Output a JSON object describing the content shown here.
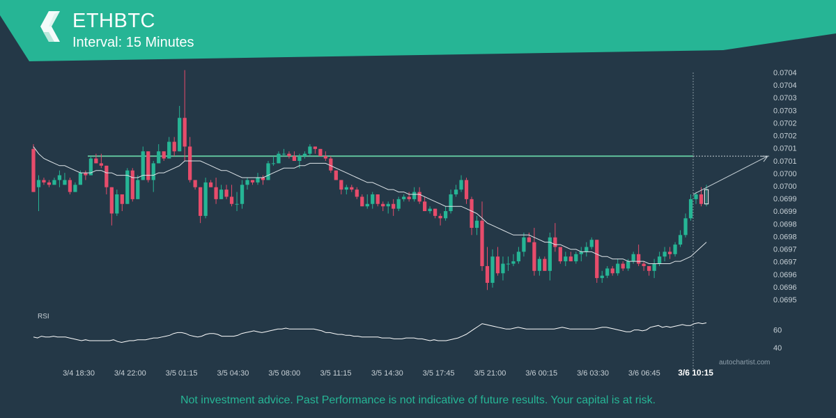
{
  "header": {
    "symbol": "ETHBTC",
    "interval": "Interval: 15 Minutes",
    "logo_icon": "autochartist-logo-icon"
  },
  "footer": {
    "disclaimer": "Not investment advice. Past Performance is not indicative of future results. Your capital is at risk.",
    "watermark": "autochartist.com"
  },
  "colors": {
    "background": "#243847",
    "brand": "#26b595",
    "up": "#26b595",
    "down": "#e74c6b",
    "level_line": "#5fbf9a",
    "ma": "#e0e6ea",
    "rsi": "#ffffff"
  },
  "chart_data": {
    "type": "candlestick",
    "y_axis": {
      "position": "right",
      "ticks": [
        "0.0704",
        "0.0704",
        "0.0703",
        "0.0703",
        "0.0702",
        "0.0702",
        "0.0701",
        "0.0701",
        "0.0700",
        "0.0700",
        "0.0699",
        "0.0699",
        "0.0698",
        "0.0698",
        "0.0697",
        "0.0697",
        "0.0696",
        "0.0696",
        "0.0695"
      ],
      "range": [
        0.06948,
        0.07043
      ]
    },
    "x_axis": {
      "tick_labels": [
        "3/4 18:30",
        "3/4 22:00",
        "3/5 01:15",
        "3/5 04:30",
        "3/5 08:00",
        "3/5 11:15",
        "3/5 14:30",
        "3/5 17:45",
        "3/5 21:00",
        "3/6 00:15",
        "3/6 03:30",
        "3/6 06:45",
        "3/6 10:15"
      ],
      "highlighted_label": "3/6 10:15"
    },
    "candles": [
      [
        0.07011,
        0.07013,
        0.06993,
        0.06993
      ],
      [
        0.06995,
        0.07,
        0.06985,
        0.06998
      ],
      [
        0.06998,
        0.06999,
        0.06996,
        0.06997
      ],
      [
        0.06997,
        0.06998,
        0.06995,
        0.06996
      ],
      [
        0.06996,
        0.06999,
        0.06996,
        0.06998
      ],
      [
        0.06998,
        0.07002,
        0.06995,
        0.07
      ],
      [
        0.06996,
        0.07001,
        0.06996,
        0.06998
      ],
      [
        0.06998,
        0.06999,
        0.06992,
        0.06993
      ],
      [
        0.06993,
        0.06997,
        0.06993,
        0.06996
      ],
      [
        0.06996,
        0.07002,
        0.06996,
        0.07001
      ],
      [
        0.07001,
        0.07002,
        0.06998,
        0.07
      ],
      [
        0.07,
        0.07008,
        0.07,
        0.07007
      ],
      [
        0.07007,
        0.07009,
        0.07005,
        0.07005
      ],
      [
        0.07005,
        0.07009,
        0.07003,
        0.07004
      ],
      [
        0.07004,
        0.07004,
        0.06992,
        0.06995
      ],
      [
        0.06995,
        0.06995,
        0.06979,
        0.06984
      ],
      [
        0.06984,
        0.06994,
        0.06983,
        0.06992
      ],
      [
        0.06992,
        0.06992,
        0.06985,
        0.06988
      ],
      [
        0.06988,
        0.07003,
        0.06988,
        0.07002
      ],
      [
        0.07002,
        0.07003,
        0.06989,
        0.0699
      ],
      [
        0.0699,
        0.07,
        0.0699,
        0.06998
      ],
      [
        0.06998,
        0.07012,
        0.06998,
        0.0701
      ],
      [
        0.0701,
        0.0701,
        0.06997,
        0.06998
      ],
      [
        0.06998,
        0.07006,
        0.06993,
        0.07005
      ],
      [
        0.07005,
        0.07013,
        0.07005,
        0.0701
      ],
      [
        0.0701,
        0.0701,
        0.07006,
        0.07007
      ],
      [
        0.07007,
        0.07016,
        0.07007,
        0.07014
      ],
      [
        0.07014,
        0.07016,
        0.07008,
        0.0701
      ],
      [
        0.0701,
        0.07029,
        0.0701,
        0.07024
      ],
      [
        0.07024,
        0.07044,
        0.07006,
        0.07012
      ],
      [
        0.07012,
        0.07016,
        0.06997,
        0.06998
      ],
      [
        0.06998,
        0.06998,
        0.06994,
        0.06995
      ],
      [
        0.06995,
        0.06995,
        0.0698,
        0.06983
      ],
      [
        0.06983,
        0.06999,
        0.06982,
        0.06997
      ],
      [
        0.06997,
        0.06998,
        0.06995,
        0.06995
      ],
      [
        0.06995,
        0.06999,
        0.06988,
        0.0699
      ],
      [
        0.0699,
        0.06996,
        0.0699,
        0.06994
      ],
      [
        0.06994,
        0.06996,
        0.0699,
        0.06991
      ],
      [
        0.06991,
        0.06996,
        0.06987,
        0.06988
      ],
      [
        0.06988,
        0.06993,
        0.06985,
        0.06988
      ],
      [
        0.06988,
        0.06998,
        0.06986,
        0.06996
      ],
      [
        0.06996,
        0.06999,
        0.06994,
        0.06998
      ],
      [
        0.06998,
        0.06998,
        0.06996,
        0.06997
      ],
      [
        0.06997,
        0.07001,
        0.06996,
        0.06999
      ],
      [
        0.06999,
        0.07,
        0.06996,
        0.06998
      ],
      [
        0.06998,
        0.07006,
        0.06998,
        0.07005
      ],
      [
        0.07005,
        0.07008,
        0.07004,
        0.07005
      ],
      [
        0.07005,
        0.0701,
        0.07005,
        0.07009
      ],
      [
        0.07009,
        0.07011,
        0.07008,
        0.07009
      ],
      [
        0.07009,
        0.0701,
        0.07007,
        0.07008
      ],
      [
        0.07008,
        0.0701,
        0.07006,
        0.07006
      ],
      [
        0.07006,
        0.07009,
        0.07003,
        0.07008
      ],
      [
        0.07008,
        0.0701,
        0.07007,
        0.07009
      ],
      [
        0.07009,
        0.07013,
        0.07008,
        0.07012
      ],
      [
        0.07012,
        0.07012,
        0.07009,
        0.07011
      ],
      [
        0.07011,
        0.07011,
        0.07008,
        0.07008
      ],
      [
        0.07008,
        0.0701,
        0.07006,
        0.07007
      ],
      [
        0.07007,
        0.07008,
        0.07001,
        0.07002
      ],
      [
        0.07002,
        0.07002,
        0.06998,
        0.06998
      ],
      [
        0.06998,
        0.06998,
        0.06992,
        0.06994
      ],
      [
        0.06994,
        0.06996,
        0.06992,
        0.06995
      ],
      [
        0.06995,
        0.06996,
        0.06993,
        0.06994
      ],
      [
        0.06994,
        0.06995,
        0.0699,
        0.06991
      ],
      [
        0.06991,
        0.06992,
        0.06987,
        0.06987
      ],
      [
        0.06987,
        0.06992,
        0.06986,
        0.06988
      ],
      [
        0.06988,
        0.06993,
        0.06986,
        0.06992
      ],
      [
        0.06992,
        0.06992,
        0.06987,
        0.06988
      ],
      [
        0.06988,
        0.06989,
        0.06985,
        0.06987
      ],
      [
        0.06987,
        0.06989,
        0.06984,
        0.06988
      ],
      [
        0.06988,
        0.0699,
        0.06983,
        0.06986
      ],
      [
        0.06986,
        0.06991,
        0.06985,
        0.0699
      ],
      [
        0.0699,
        0.06992,
        0.06989,
        0.06991
      ],
      [
        0.06991,
        0.06993,
        0.06989,
        0.0699
      ],
      [
        0.0699,
        0.06995,
        0.06989,
        0.06993
      ],
      [
        0.06993,
        0.06995,
        0.06988,
        0.06989
      ],
      [
        0.06989,
        0.06991,
        0.06985,
        0.06985
      ],
      [
        0.06985,
        0.06987,
        0.06984,
        0.06986
      ],
      [
        0.06986,
        0.06986,
        0.06982,
        0.06983
      ],
      [
        0.06983,
        0.06984,
        0.06979,
        0.06982
      ],
      [
        0.06982,
        0.06987,
        0.06981,
        0.06985
      ],
      [
        0.06985,
        0.06994,
        0.06984,
        0.06992
      ],
      [
        0.06992,
        0.06996,
        0.06991,
        0.06994
      ],
      [
        0.06994,
        0.07,
        0.06993,
        0.06998
      ],
      [
        0.06998,
        0.06999,
        0.06988,
        0.0699
      ],
      [
        0.0699,
        0.06991,
        0.06975,
        0.06978
      ],
      [
        0.06978,
        0.06983,
        0.06975,
        0.06981
      ],
      [
        0.06981,
        0.06989,
        0.0696,
        0.06962
      ],
      [
        0.06962,
        0.0697,
        0.06952,
        0.06955
      ],
      [
        0.06955,
        0.06969,
        0.06953,
        0.06966
      ],
      [
        0.06966,
        0.0697,
        0.06958,
        0.06959
      ],
      [
        0.06959,
        0.06966,
        0.06956,
        0.06963
      ],
      [
        0.06963,
        0.06966,
        0.0696,
        0.06963
      ],
      [
        0.06963,
        0.06967,
        0.06962,
        0.06964
      ],
      [
        0.06964,
        0.0697,
        0.06963,
        0.06968
      ],
      [
        0.06968,
        0.06976,
        0.06966,
        0.06974
      ],
      [
        0.06974,
        0.06976,
        0.06972,
        0.06972
      ],
      [
        0.06972,
        0.06978,
        0.06958,
        0.0696
      ],
      [
        0.0696,
        0.06966,
        0.06958,
        0.06965
      ],
      [
        0.06965,
        0.06966,
        0.0696,
        0.0696
      ],
      [
        0.0696,
        0.06976,
        0.06956,
        0.06974
      ],
      [
        0.06974,
        0.0698,
        0.06968,
        0.0697
      ],
      [
        0.0697,
        0.0697,
        0.06963,
        0.06964
      ],
      [
        0.06964,
        0.06968,
        0.06962,
        0.06966
      ],
      [
        0.06966,
        0.06968,
        0.06964,
        0.06964
      ],
      [
        0.06964,
        0.06968,
        0.06963,
        0.06967
      ],
      [
        0.06967,
        0.0697,
        0.06964,
        0.06968
      ],
      [
        0.06968,
        0.06972,
        0.06966,
        0.0697
      ],
      [
        0.0697,
        0.06974,
        0.06969,
        0.06973
      ],
      [
        0.06973,
        0.06973,
        0.06955,
        0.06957
      ],
      [
        0.06957,
        0.0696,
        0.06955,
        0.06958
      ],
      [
        0.06958,
        0.06962,
        0.06957,
        0.06961
      ],
      [
        0.06961,
        0.06962,
        0.06958,
        0.06959
      ],
      [
        0.06959,
        0.06965,
        0.06958,
        0.06963
      ],
      [
        0.06963,
        0.06964,
        0.0696,
        0.06961
      ],
      [
        0.06961,
        0.06965,
        0.0696,
        0.06964
      ],
      [
        0.06964,
        0.06968,
        0.06963,
        0.06967
      ],
      [
        0.06967,
        0.06971,
        0.06962,
        0.06963
      ],
      [
        0.06963,
        0.06964,
        0.0696,
        0.06962
      ],
      [
        0.06962,
        0.06962,
        0.06958,
        0.0696
      ],
      [
        0.0696,
        0.06965,
        0.06957,
        0.06963
      ],
      [
        0.06963,
        0.06968,
        0.06962,
        0.06966
      ],
      [
        0.06966,
        0.0697,
        0.06964,
        0.06968
      ],
      [
        0.06968,
        0.0697,
        0.06965,
        0.06967
      ],
      [
        0.06967,
        0.06972,
        0.06966,
        0.06971
      ],
      [
        0.06971,
        0.06977,
        0.0697,
        0.06975
      ],
      [
        0.06975,
        0.06984,
        0.06974,
        0.06982
      ],
      [
        0.06982,
        0.06992,
        0.06981,
        0.0699
      ],
      [
        0.0699,
        0.06993,
        0.06988,
        0.06992
      ],
      [
        0.06992,
        0.06995,
        0.06987,
        0.06988
      ],
      [
        0.06988,
        0.06996,
        0.06987,
        0.06994
      ]
    ],
    "moving_average": [
      0.07012,
      0.07009,
      0.07007,
      0.07006,
      0.07005,
      0.07004,
      0.07004,
      0.07003,
      0.07002,
      0.07001,
      0.07001,
      0.07001,
      0.07002,
      0.07002,
      0.07001,
      0.07001,
      0.07,
      0.07,
      0.07,
      0.06999,
      0.06999,
      0.07,
      0.07,
      0.07,
      0.07001,
      0.07001,
      0.07002,
      0.07003,
      0.07004,
      0.07006,
      0.07006,
      0.07006,
      0.07006,
      0.07005,
      0.07004,
      0.07003,
      0.07002,
      0.07002,
      0.07001,
      0.07,
      0.06999,
      0.06999,
      0.06999,
      0.06999,
      0.06999,
      0.07,
      0.07001,
      0.07002,
      0.07003,
      0.07003,
      0.07003,
      0.07004,
      0.07004,
      0.07005,
      0.07005,
      0.07005,
      0.07005,
      0.07004,
      0.07003,
      0.07002,
      0.07001,
      0.07,
      0.06999,
      0.06998,
      0.06997,
      0.06997,
      0.06996,
      0.06995,
      0.06994,
      0.06994,
      0.06993,
      0.06993,
      0.06992,
      0.06992,
      0.06992,
      0.06991,
      0.0699,
      0.06989,
      0.06988,
      0.06987,
      0.06987,
      0.06987,
      0.06987,
      0.06986,
      0.06985,
      0.06984,
      0.06982,
      0.0698,
      0.06979,
      0.06978,
      0.06977,
      0.06976,
      0.06975,
      0.06975,
      0.06975,
      0.06975,
      0.06974,
      0.06973,
      0.06972,
      0.06972,
      0.06971,
      0.06971,
      0.0697,
      0.06969,
      0.06969,
      0.06968,
      0.06968,
      0.06968,
      0.06967,
      0.06966,
      0.06966,
      0.06965,
      0.06965,
      0.06965,
      0.06964,
      0.06964,
      0.06964,
      0.06964,
      0.06963,
      0.06963,
      0.06963,
      0.06963,
      0.06963,
      0.06964,
      0.06964,
      0.06965,
      0.06966,
      0.06968,
      0.0697,
      0.06972
    ],
    "support_resistance_level": 0.07008,
    "forecast_target": 0.07008,
    "rsi": {
      "label": "RSI",
      "ticks": [
        60,
        40
      ],
      "range": [
        30,
        80
      ],
      "values": [
        52,
        51,
        53,
        52,
        52,
        53,
        52,
        52,
        52,
        51,
        50,
        49,
        48,
        49,
        48,
        48,
        48,
        48,
        48,
        48,
        49,
        47,
        46,
        47,
        48,
        48,
        49,
        49,
        49,
        50,
        51,
        51,
        52,
        53,
        54,
        56,
        57,
        57,
        56,
        54,
        53,
        52,
        53,
        55,
        56,
        56,
        55,
        53,
        53,
        53,
        53,
        54,
        56,
        57,
        58,
        59,
        58,
        57,
        58,
        59,
        60,
        61,
        61,
        62,
        61,
        61,
        61,
        61,
        61,
        61,
        61,
        60,
        59,
        57,
        57,
        56,
        55,
        55,
        54,
        54,
        53,
        53,
        52,
        52,
        52,
        52,
        52,
        51,
        51,
        51,
        50,
        50,
        50,
        51,
        51,
        51,
        50,
        50,
        49,
        48,
        49,
        48,
        48,
        48,
        49,
        50,
        51,
        53,
        55,
        58,
        61,
        64,
        67,
        66,
        65,
        64,
        63,
        62,
        61,
        61,
        62,
        63,
        62,
        61,
        61,
        61,
        61,
        61,
        61,
        61,
        61,
        62,
        63,
        62,
        61,
        61,
        61,
        61,
        61,
        61,
        61,
        62,
        63,
        63,
        62,
        61,
        60,
        59,
        58,
        58,
        60,
        60,
        59,
        60,
        63,
        64,
        65,
        63,
        64,
        63,
        64,
        65,
        66,
        65,
        65,
        67,
        68,
        67,
        68
      ]
    },
    "vertical_marker": "3/6 10:15"
  }
}
